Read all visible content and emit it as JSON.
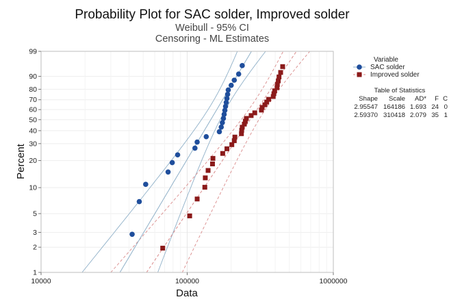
{
  "chart_data": {
    "type": "scatter",
    "title": "Probability Plot for SAC solder, Improved solder",
    "subtitle_lines": [
      "Weibull - 95% CI",
      "Censoring - ML Estimates"
    ],
    "xlabel": "Data",
    "ylabel": "Percent",
    "x_scale": "log",
    "y_scale": "weibull",
    "xlim": [
      10000,
      1000000
    ],
    "ylim": [
      1,
      99
    ],
    "x_ticks": [
      10000,
      100000,
      1000000
    ],
    "x_tick_labels": [
      "10000",
      "100000",
      "1000000"
    ],
    "y_ticks": [
      1,
      2,
      3,
      5,
      10,
      20,
      30,
      40,
      50,
      60,
      70,
      80,
      90,
      99
    ],
    "y_tick_labels": [
      "1",
      "2",
      "3",
      "5",
      "10",
      "20",
      "30",
      "40",
      "50",
      "60",
      "70",
      "80",
      "90",
      "99"
    ],
    "grid": true,
    "legend": {
      "title": "Variable",
      "placement": "right",
      "entries": [
        "SAC solder",
        "Improved solder"
      ]
    },
    "series": [
      {
        "name": "SAC solder",
        "marker": "circle",
        "color": "#1f4e9c",
        "line_color": "#8fb0c8",
        "line_style": "solid",
        "shape": 2.95547,
        "scale": 164186,
        "points": [
          [
            42000,
            2.85
          ],
          [
            47000,
            6.9
          ],
          [
            52000,
            10.9
          ],
          [
            74000,
            15.0
          ],
          [
            79000,
            19.0
          ],
          [
            86000,
            23.0
          ],
          [
            113000,
            27.0
          ],
          [
            117000,
            31.1
          ],
          [
            135000,
            35.1
          ],
          [
            166000,
            39.1
          ],
          [
            171000,
            43.1
          ],
          [
            174000,
            47.2
          ],
          [
            177000,
            51.2
          ],
          [
            179000,
            55.2
          ],
          [
            181000,
            59.2
          ],
          [
            183000,
            63.3
          ],
          [
            185000,
            67.3
          ],
          [
            187000,
            71.3
          ],
          [
            189000,
            75.3
          ],
          [
            191000,
            79.4
          ],
          [
            200000,
            83.4
          ],
          [
            210000,
            87.4
          ],
          [
            225000,
            91.4
          ],
          [
            238000,
            95.5
          ]
        ]
      },
      {
        "name": "Improved solder",
        "marker": "square",
        "color": "#8b1a1a",
        "line_color": "#d98a8a",
        "line_style": "dashed",
        "shape": 2.5937,
        "scale": 310418,
        "points": [
          [
            68000,
            1.95
          ],
          [
            104000,
            4.7
          ],
          [
            117000,
            7.4
          ],
          [
            132000,
            10.1
          ],
          [
            133000,
            12.9
          ],
          [
            139000,
            15.6
          ],
          [
            149000,
            18.4
          ],
          [
            150000,
            21.1
          ],
          [
            175000,
            23.8
          ],
          [
            187000,
            26.6
          ],
          [
            202000,
            29.3
          ],
          [
            210000,
            32.1
          ],
          [
            212000,
            34.8
          ],
          [
            235000,
            37.5
          ],
          [
            236000,
            40.3
          ],
          [
            238000,
            43.0
          ],
          [
            246000,
            45.8
          ],
          [
            250000,
            48.5
          ],
          [
            254000,
            51.2
          ],
          [
            274000,
            54.0
          ],
          [
            290000,
            56.7
          ],
          [
            322000,
            59.5
          ],
          [
            326000,
            62.2
          ],
          [
            340000,
            64.9
          ],
          [
            350000,
            67.7
          ],
          [
            361000,
            70.4
          ],
          [
            388000,
            73.2
          ],
          [
            392000,
            75.9
          ],
          [
            397000,
            78.6
          ],
          [
            412000,
            81.4
          ],
          [
            414000,
            84.1
          ],
          [
            420000,
            86.9
          ],
          [
            425000,
            89.6
          ],
          [
            436000,
            92.3
          ],
          [
            450000,
            95.1
          ]
        ]
      }
    ],
    "statistics_table": {
      "title": "Table of Statistics",
      "headers": [
        "Shape",
        "Scale",
        "AD*",
        "F",
        "C"
      ],
      "rows": [
        [
          "2.95547",
          "164186",
          "1.693",
          "24",
          "0"
        ],
        [
          "2.59370",
          "310418",
          "2.079",
          "35",
          "1"
        ]
      ]
    }
  }
}
